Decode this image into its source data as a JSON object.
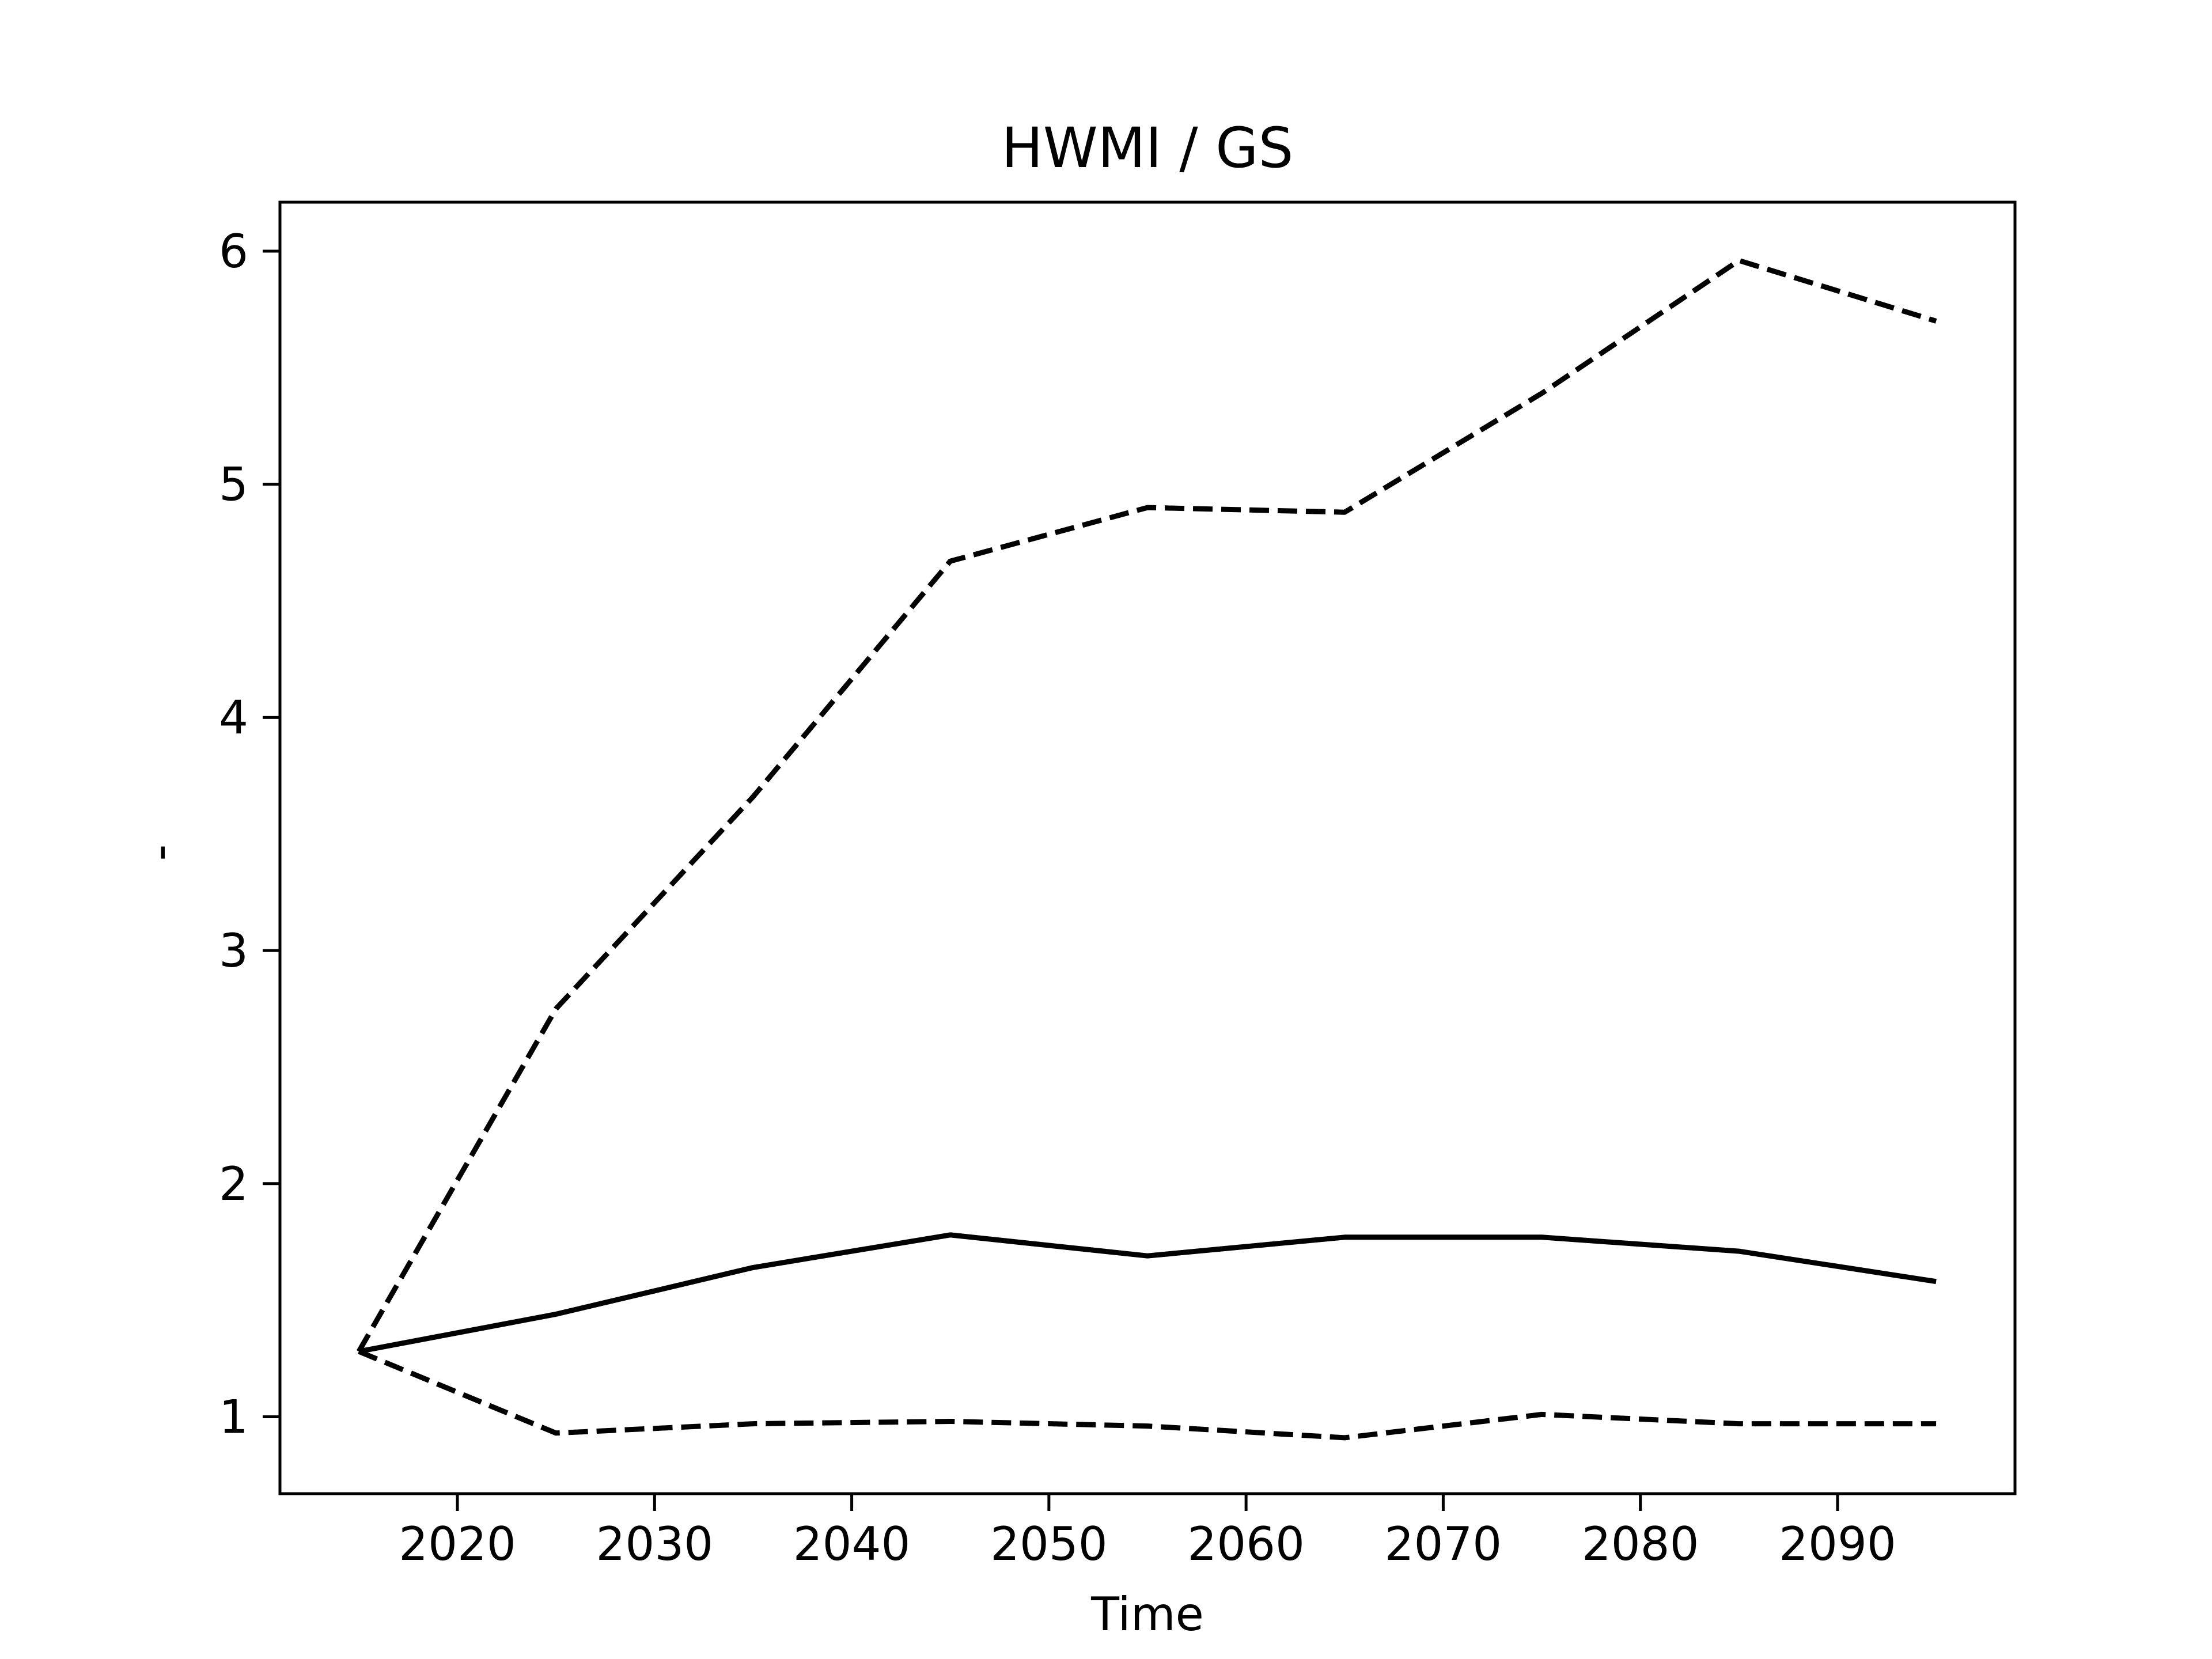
{
  "chart_data": {
    "type": "line",
    "title": "HWMI / GS",
    "xlabel": "Time",
    "ylabel": "-",
    "xlim": [
      2011,
      2099
    ],
    "ylim": [
      0.67,
      6.21
    ],
    "xticks": [
      2020,
      2030,
      2040,
      2050,
      2060,
      2070,
      2080,
      2090
    ],
    "yticks": [
      1,
      2,
      3,
      4,
      5,
      6
    ],
    "grid": false,
    "legend": "none",
    "x": [
      2015,
      2025,
      2035,
      2045,
      2055,
      2065,
      2075,
      2085,
      2095
    ],
    "series": [
      {
        "style": "solid",
        "color": "#000000",
        "values": [
          1.28,
          1.44,
          1.64,
          1.78,
          1.69,
          1.77,
          1.77,
          1.71,
          1.58
        ]
      },
      {
        "style": "dashed",
        "color": "#000000",
        "values": [
          1.28,
          2.75,
          3.66,
          4.67,
          4.9,
          4.88,
          5.39,
          5.96,
          5.7
        ]
      },
      {
        "style": "dashed",
        "color": "#000000",
        "values": [
          1.28,
          0.93,
          0.97,
          0.98,
          0.96,
          0.91,
          1.01,
          0.97,
          0.97
        ]
      }
    ]
  }
}
